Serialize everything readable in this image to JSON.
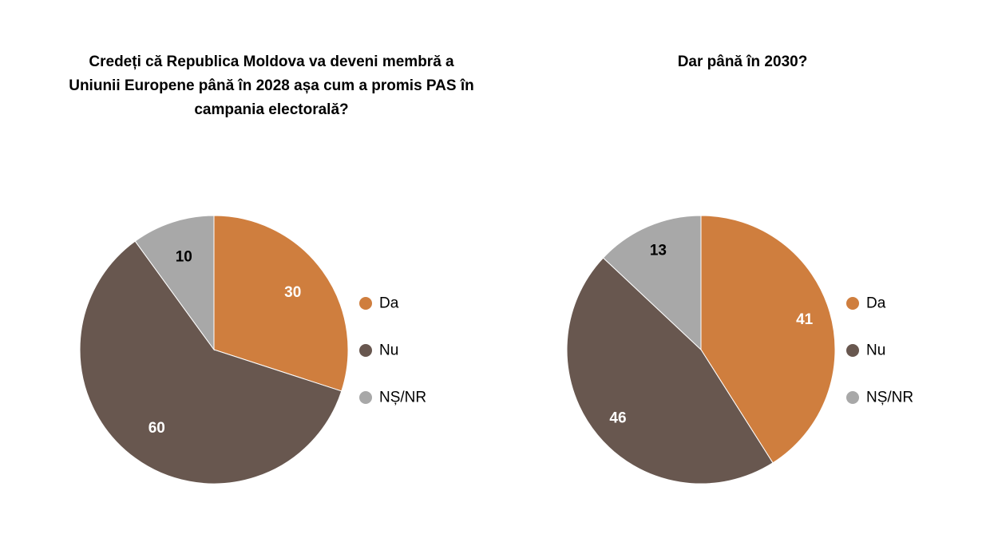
{
  "colors": {
    "Da": "#cf7e3e",
    "Nu": "#68574f",
    "NS_NR": "#a8a8a8",
    "label_dark": "#000000",
    "label_light": "#ffffff",
    "slice_border": "#ffffff"
  },
  "chart_data": [
    {
      "type": "pie",
      "title": "Credeți că Republica Moldova va deveni membră a Uniunii Europene până în 2028 așa cum a promis PAS în campania electorală?",
      "title_lines": [
        "Credeți că Republica Moldova va deveni membră a",
        "Uniunii Europene până în 2028 așa cum a promis PAS în",
        "campania electorală?"
      ],
      "categories": [
        "Da",
        "Nu",
        "NȘ/NR"
      ],
      "values": [
        30,
        60,
        10
      ],
      "data_labels": [
        "30",
        "60",
        "10"
      ],
      "legend": {
        "placement": "right",
        "entries": [
          "Da",
          "Nu",
          "NȘ/NR"
        ]
      }
    },
    {
      "type": "pie",
      "title": "Dar până în 2030?",
      "title_lines": [
        "Dar până în 2030?"
      ],
      "categories": [
        "Da",
        "Nu",
        "NȘ/NR"
      ],
      "values": [
        41,
        46,
        13
      ],
      "data_labels": [
        "41",
        "46",
        "13"
      ],
      "legend": {
        "placement": "right",
        "entries": [
          "Da",
          "Nu",
          "NȘ/NR"
        ]
      }
    }
  ]
}
